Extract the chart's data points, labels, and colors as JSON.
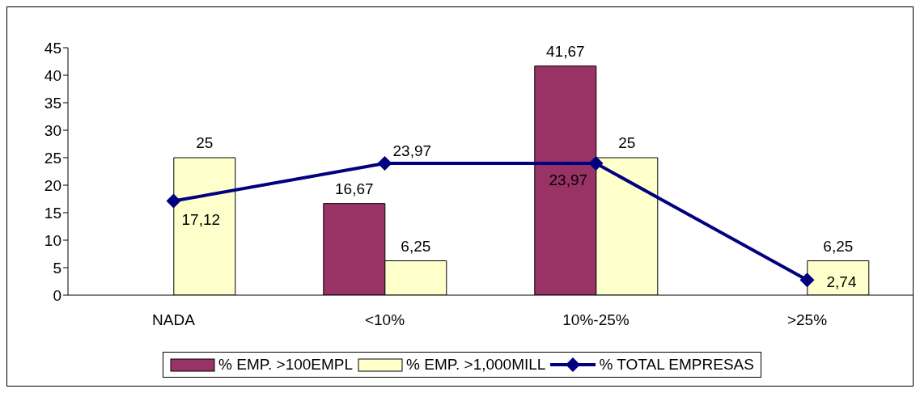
{
  "chart_data": {
    "type": "bar",
    "categories": [
      "NADA",
      "<10%",
      "10%-25%",
      ">25%"
    ],
    "series": [
      {
        "name": "% EMP. >100EMPL",
        "color": "#993366",
        "values": [
          null,
          16.67,
          41.67,
          null
        ],
        "value_labels": [
          null,
          "16,67",
          "41,67",
          null
        ]
      },
      {
        "name": "% EMP. >1,000MILL",
        "color": "#ffffcc",
        "values": [
          25,
          6.25,
          25,
          6.25
        ],
        "value_labels": [
          "25",
          "6,25",
          "25",
          "6,25"
        ]
      },
      {
        "name": "% TOTAL EMPRESAS",
        "type": "line",
        "color": "#000080",
        "values": [
          17.12,
          23.97,
          23.97,
          2.74
        ],
        "marker": "diamond",
        "value_labels": [
          "17,12",
          "23,97",
          "23,97",
          "2,74"
        ]
      }
    ],
    "ylim": [
      0,
      45
    ],
    "yticks": [
      0,
      5,
      10,
      15,
      20,
      25,
      30,
      35,
      40,
      45
    ],
    "grid": false,
    "legend": "bottom"
  }
}
